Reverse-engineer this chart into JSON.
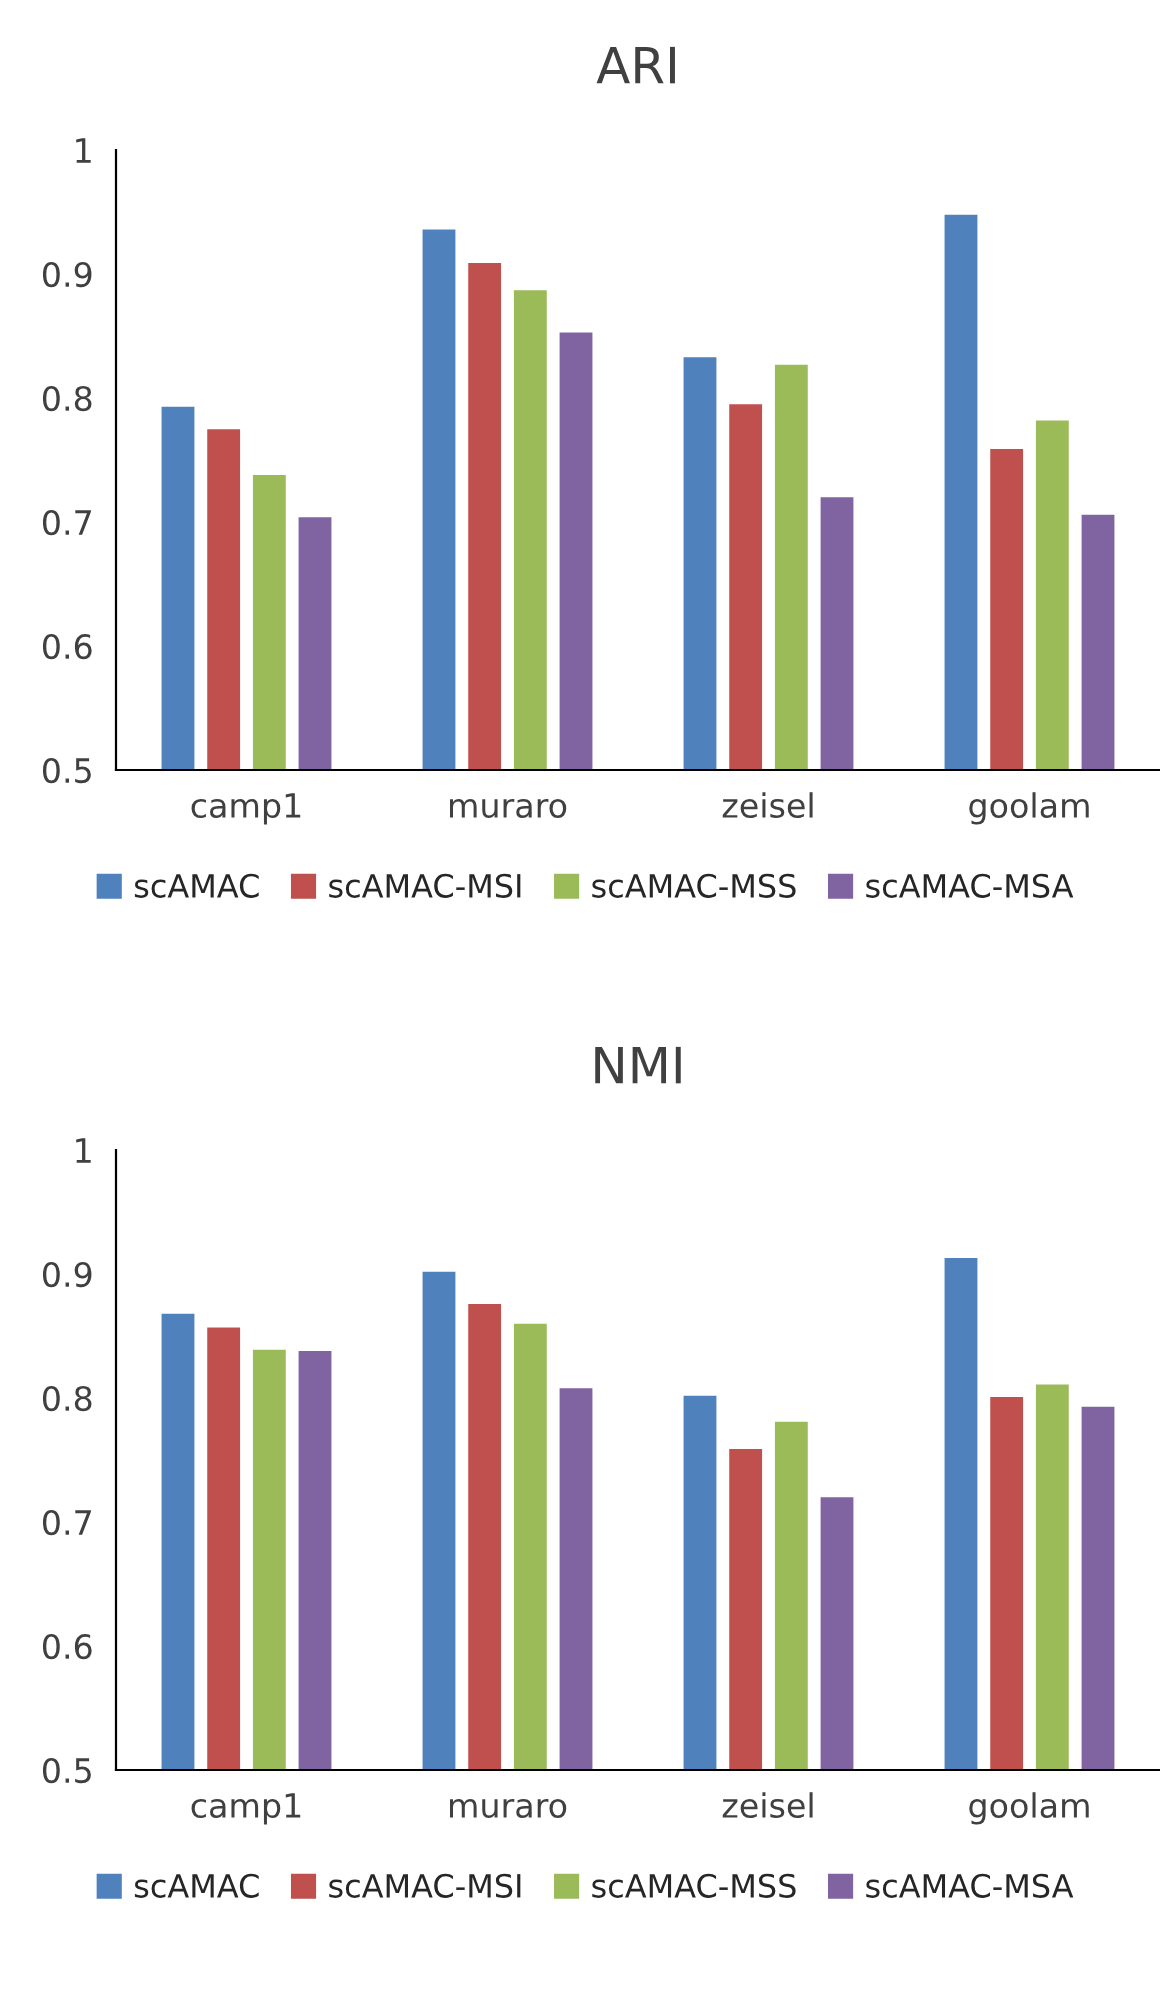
{
  "chart_data": [
    {
      "type": "bar",
      "title": "ARI",
      "categories": [
        "camp1",
        "muraro",
        "zeisel",
        "goolam"
      ],
      "ylim": [
        0.5,
        1
      ],
      "yticks": [
        0.5,
        0.6,
        0.7,
        0.8,
        0.9,
        1
      ],
      "grid": false,
      "legend": "bottom",
      "series": [
        {
          "name": "scAMAC",
          "color": "#4f81bd",
          "values": [
            0.794,
            0.937,
            0.834,
            0.949
          ]
        },
        {
          "name": "scAMAC-MSI",
          "color": "#c0504d",
          "values": [
            0.776,
            0.91,
            0.796,
            0.76
          ]
        },
        {
          "name": "scAMAC-MSS",
          "color": "#9bbb59",
          "values": [
            0.739,
            0.888,
            0.828,
            0.783
          ]
        },
        {
          "name": "scAMAC-MSA",
          "color": "#8064a2",
          "values": [
            0.705,
            0.854,
            0.721,
            0.707
          ]
        }
      ]
    },
    {
      "type": "bar",
      "title": "NMI",
      "categories": [
        "camp1",
        "muraro",
        "zeisel",
        "goolam"
      ],
      "ylim": [
        0.5,
        1
      ],
      "yticks": [
        0.5,
        0.6,
        0.7,
        0.8,
        0.9,
        1
      ],
      "grid": false,
      "legend": "bottom",
      "series": [
        {
          "name": "scAMAC",
          "color": "#4f81bd",
          "values": [
            0.869,
            0.903,
            0.803,
            0.914
          ]
        },
        {
          "name": "scAMAC-MSI",
          "color": "#c0504d",
          "values": [
            0.858,
            0.877,
            0.76,
            0.802
          ]
        },
        {
          "name": "scAMAC-MSS",
          "color": "#9bbb59",
          "values": [
            0.84,
            0.861,
            0.782,
            0.812
          ]
        },
        {
          "name": "scAMAC-MSA",
          "color": "#8064a2",
          "values": [
            0.839,
            0.809,
            0.721,
            0.794
          ]
        }
      ]
    }
  ]
}
